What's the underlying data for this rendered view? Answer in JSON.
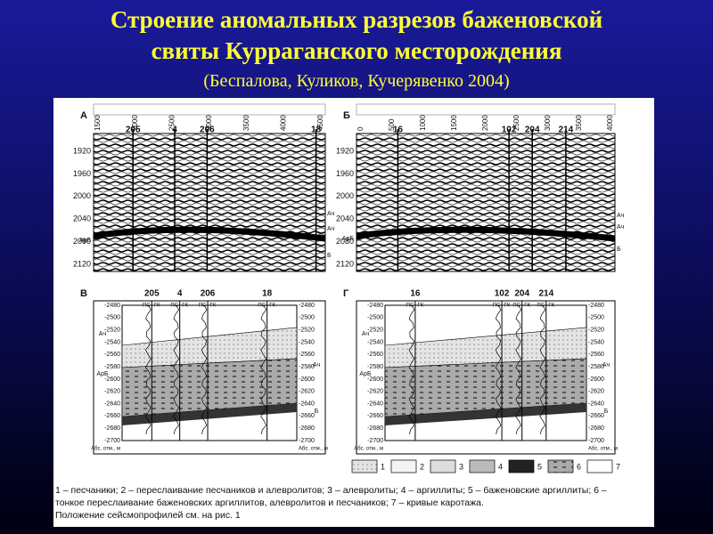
{
  "slide": {
    "title_lines": [
      "Строение аномальных разрезов баженовской",
      "свиты Курраганского месторождения"
    ],
    "subtitle": "(Беспалова, Куликов, Кучерявенко 2004)"
  },
  "figure": {
    "seismic": [
      {
        "label": "А",
        "wells": [
          "205",
          "4",
          "206",
          "18"
        ],
        "offsets": [
          "1500",
          "2000",
          "2500",
          "3000",
          "3500",
          "4000",
          "4500"
        ],
        "times": [
          1920,
          1960,
          2000,
          2040,
          2080,
          2120
        ],
        "horizons": [
          "Ач",
          "Ач",
          "АрБ",
          "Б"
        ]
      },
      {
        "label": "Б",
        "wells": [
          "16",
          "102",
          "204",
          "214"
        ],
        "offsets": [
          "0",
          "500",
          "1000",
          "1500",
          "2000",
          "2500",
          "3000",
          "3500",
          "4000"
        ],
        "times": [
          1920,
          1960,
          2000,
          2040,
          2080,
          2120
        ],
        "horizons": [
          "Ач",
          "Ач",
          "АрБ",
          "Б"
        ]
      }
    ],
    "sections": [
      {
        "label": "В",
        "wells": [
          "205",
          "4",
          "206",
          "18"
        ],
        "depths": [
          -2480,
          -2500,
          -2520,
          -2540,
          -2560,
          -2580,
          -2600,
          -2620,
          -2640,
          -2660,
          -2680,
          -2700
        ],
        "layers": [
          "Ач",
          "АрБ",
          "Ач",
          "Б"
        ],
        "datum": "Абс. отм., м"
      },
      {
        "label": "Г",
        "wells": [
          "16",
          "102",
          "204",
          "214"
        ],
        "depths": [
          -2480,
          -2500,
          -2520,
          -2540,
          -2560,
          -2580,
          -2600,
          -2620,
          -2640,
          -2660,
          -2680,
          -2700
        ],
        "layers": [
          "Ач",
          "АрБ",
          "Ач",
          "Б"
        ],
        "datum": "Абс. отм., м"
      }
    ],
    "log_labels": [
      "ПС",
      "ГК"
    ],
    "legend": [
      "1",
      "2",
      "3",
      "4",
      "5",
      "6",
      "7"
    ],
    "caption": [
      "1 – песчаники; 2 – переслаивание песчаников и алевролитов; 3 – алевролиты; 4 – аргиллиты; 5 – баженовские аргиллиты; 6 –",
      "тонкое переслаивание баженовских аргиллитов, алевролитов и песчаников; 7 – кривые каротажа.",
      "Положение сейсмопрофилей см. на рис. 1"
    ]
  }
}
